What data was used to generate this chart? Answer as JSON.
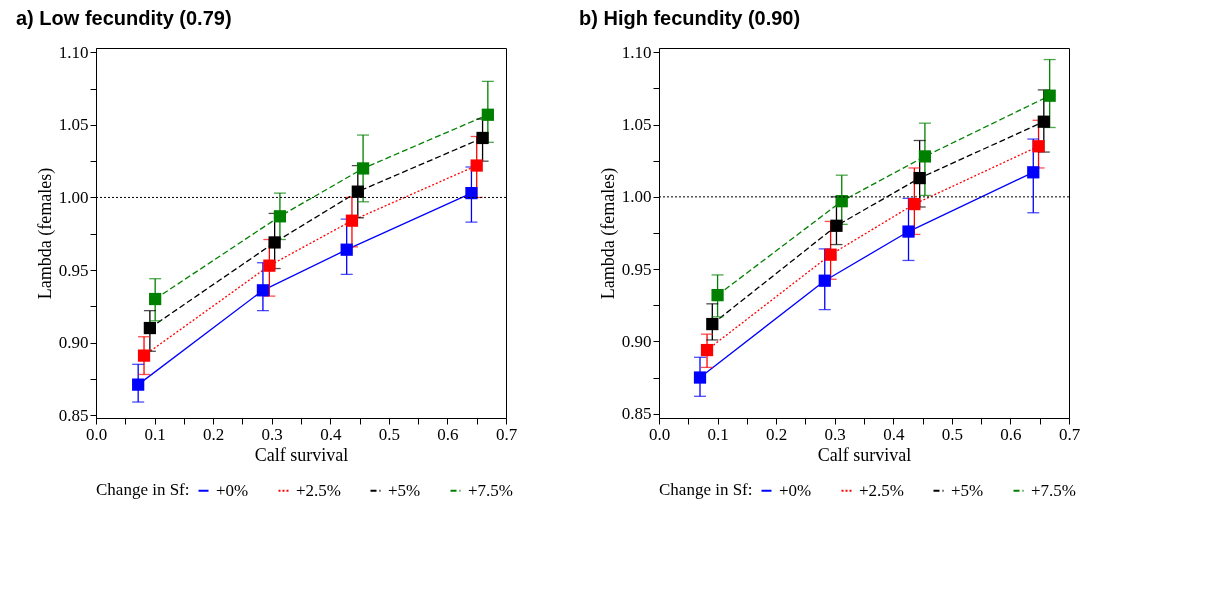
{
  "chart_data": [
    {
      "type": "line",
      "title": "a) Low fecundity (0.79)",
      "xlabel": "Calf survival",
      "ylabel": "Lambda (females)",
      "legend_title": "Change in Sf:",
      "legend": "bottom",
      "marker": "square",
      "xlim": [
        0.0,
        0.7
      ],
      "xticks": [
        {
          "value": 0.0,
          "label": "0.0"
        },
        {
          "value": 0.05,
          "label": null
        },
        {
          "value": 0.1,
          "label": "0.1"
        },
        {
          "value": 0.15,
          "label": null
        },
        {
          "value": 0.2,
          "label": "0.2"
        },
        {
          "value": 0.25,
          "label": null
        },
        {
          "value": 0.3,
          "label": "0.3"
        },
        {
          "value": 0.35,
          "label": null
        },
        {
          "value": 0.4,
          "label": "0.4"
        },
        {
          "value": 0.45,
          "label": null
        },
        {
          "value": 0.5,
          "label": "0.5"
        },
        {
          "value": 0.55,
          "label": null
        },
        {
          "value": 0.6,
          "label": "0.6"
        },
        {
          "value": 0.65,
          "label": null
        },
        {
          "value": 0.7,
          "label": "0.7"
        }
      ],
      "ylim": [
        0.848,
        1.103
      ],
      "yticks": [
        {
          "value": 0.85,
          "label": "0.85"
        },
        {
          "value": 0.875,
          "label": null
        },
        {
          "value": 0.9,
          "label": "0.90"
        },
        {
          "value": 0.925,
          "label": null
        },
        {
          "value": 0.95,
          "label": "0.95"
        },
        {
          "value": 0.975,
          "label": null
        },
        {
          "value": 1.0,
          "label": "1.00"
        },
        {
          "value": 1.025,
          "label": null
        },
        {
          "value": 1.05,
          "label": "1.05"
        },
        {
          "value": 1.075,
          "label": null
        },
        {
          "value": 1.1,
          "label": "1.10"
        }
      ],
      "ref_lines": [
        {
          "axis": "y",
          "value": 1.0,
          "color": "#000000",
          "line_style": "dotted"
        }
      ],
      "series": [
        {
          "name": "+0%",
          "color": "#0000ff",
          "line_style": "solid",
          "x": [
            0.072,
            0.285,
            0.428,
            0.641
          ],
          "values": [
            0.871,
            0.936,
            0.964,
            1.003
          ],
          "errors": [
            [
              0.859,
              0.885
            ],
            [
              0.922,
              0.955
            ],
            [
              0.947,
              0.985
            ],
            [
              0.983,
              1.021
            ]
          ]
        },
        {
          "name": "+2.5%",
          "color": "#ff0000",
          "line_style": "dotted",
          "x": [
            0.082,
            0.296,
            0.437,
            0.65
          ],
          "values": [
            0.891,
            0.953,
            0.984,
            1.022
          ],
          "errors": [
            [
              0.878,
              0.904
            ],
            [
              0.932,
              0.971
            ],
            [
              0.966,
              1.0
            ],
            [
              1.0,
              1.042
            ]
          ]
        },
        {
          "name": "+5%",
          "color": "#000000",
          "line_style": "dashed",
          "x": [
            0.092,
            0.305,
            0.447,
            0.66
          ],
          "values": [
            0.91,
            0.969,
            1.004,
            1.041
          ],
          "errors": [
            [
              0.894,
              0.922
            ],
            [
              0.951,
              0.989
            ],
            [
              0.986,
              1.022
            ],
            [
              1.025,
              1.054
            ]
          ]
        },
        {
          "name": "+7.5%",
          "color": "#008000",
          "line_style": "dashed",
          "x": [
            0.101,
            0.314,
            0.456,
            0.669
          ],
          "values": [
            0.93,
            0.987,
            1.02,
            1.057
          ],
          "errors": [
            [
              0.915,
              0.944
            ],
            [
              0.971,
              1.003
            ],
            [
              0.997,
              1.043
            ],
            [
              1.038,
              1.08
            ]
          ]
        }
      ]
    },
    {
      "type": "line",
      "title": "b) High fecundity (0.90)",
      "xlabel": "Calf survival",
      "ylabel": "Lambda (females)",
      "legend_title": "Change in Sf:",
      "legend": "bottom",
      "marker": "square",
      "xlim": [
        0.0,
        0.7
      ],
      "xticks": [
        {
          "value": 0.0,
          "label": "0.0"
        },
        {
          "value": 0.05,
          "label": null
        },
        {
          "value": 0.1,
          "label": "0.1"
        },
        {
          "value": 0.15,
          "label": null
        },
        {
          "value": 0.2,
          "label": "0.2"
        },
        {
          "value": 0.25,
          "label": null
        },
        {
          "value": 0.3,
          "label": "0.3"
        },
        {
          "value": 0.35,
          "label": null
        },
        {
          "value": 0.4,
          "label": "0.4"
        },
        {
          "value": 0.45,
          "label": null
        },
        {
          "value": 0.5,
          "label": "0.5"
        },
        {
          "value": 0.55,
          "label": null
        },
        {
          "value": 0.6,
          "label": "0.6"
        },
        {
          "value": 0.65,
          "label": null
        },
        {
          "value": 0.7,
          "label": "0.7"
        }
      ],
      "ylim": [
        0.847,
        1.103
      ],
      "yticks": [
        {
          "value": 0.85,
          "label": "0.85"
        },
        {
          "value": 0.875,
          "label": null
        },
        {
          "value": 0.9,
          "label": "0.90"
        },
        {
          "value": 0.925,
          "label": null
        },
        {
          "value": 0.95,
          "label": "0.95"
        },
        {
          "value": 0.975,
          "label": null
        },
        {
          "value": 1.0,
          "label": "1.00"
        },
        {
          "value": 1.025,
          "label": null
        },
        {
          "value": 1.05,
          "label": "1.05"
        },
        {
          "value": 1.075,
          "label": null
        },
        {
          "value": 1.1,
          "label": "1.10"
        }
      ],
      "ref_lines": [
        {
          "axis": "y",
          "value": 1.0,
          "color": "#000000",
          "line_style": "dotted"
        }
      ],
      "series": [
        {
          "name": "+0%",
          "color": "#0000ff",
          "line_style": "solid",
          "x": [
            0.07,
            0.283,
            0.426,
            0.639
          ],
          "values": [
            0.875,
            0.942,
            0.976,
            1.017
          ],
          "errors": [
            [
              0.862,
              0.889
            ],
            [
              0.922,
              0.964
            ],
            [
              0.956,
              0.999
            ],
            [
              0.989,
              1.04
            ]
          ]
        },
        {
          "name": "+2.5%",
          "color": "#ff0000",
          "line_style": "dotted",
          "x": [
            0.082,
            0.293,
            0.436,
            0.648
          ],
          "values": [
            0.894,
            0.96,
            0.995,
            1.035
          ],
          "errors": [
            [
              0.882,
              0.905
            ],
            [
              0.943,
              0.983
            ],
            [
              0.974,
              1.02
            ],
            [
              1.02,
              1.053
            ]
          ]
        },
        {
          "name": "+5%",
          "color": "#000000",
          "line_style": "dashed",
          "x": [
            0.091,
            0.303,
            0.445,
            0.657
          ],
          "values": [
            0.912,
            0.98,
            1.013,
            1.052
          ],
          "errors": [
            [
              0.901,
              0.926
            ],
            [
              0.967,
              1.0
            ],
            [
              0.993,
              1.039
            ],
            [
              1.031,
              1.074
            ]
          ]
        },
        {
          "name": "+7.5%",
          "color": "#008000",
          "line_style": "dashed",
          "x": [
            0.1,
            0.312,
            0.454,
            0.667
          ],
          "values": [
            0.932,
            0.997,
            1.028,
            1.07
          ],
          "errors": [
            [
              0.917,
              0.946
            ],
            [
              0.981,
              1.015
            ],
            [
              1.001,
              1.051
            ],
            [
              1.048,
              1.095
            ]
          ]
        }
      ]
    }
  ]
}
